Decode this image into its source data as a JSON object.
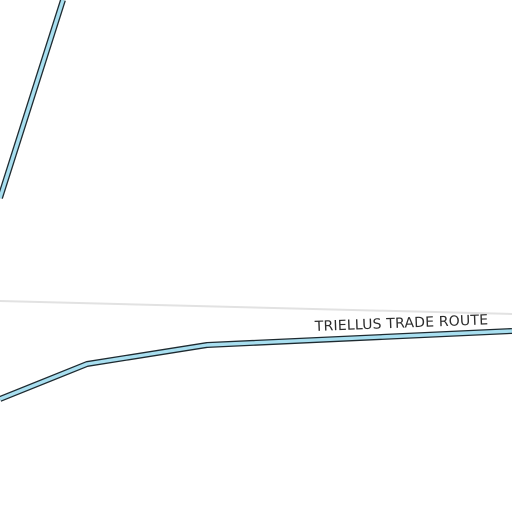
{
  "map": {
    "background": "#ffffff",
    "route_fill_color": "#a8dff0",
    "route_casing_color": "#1e2a30",
    "boundary_color": "#e2e2e2",
    "labels": {
      "trade_route": "TRIELLUS TRADE ROUTE"
    }
  }
}
